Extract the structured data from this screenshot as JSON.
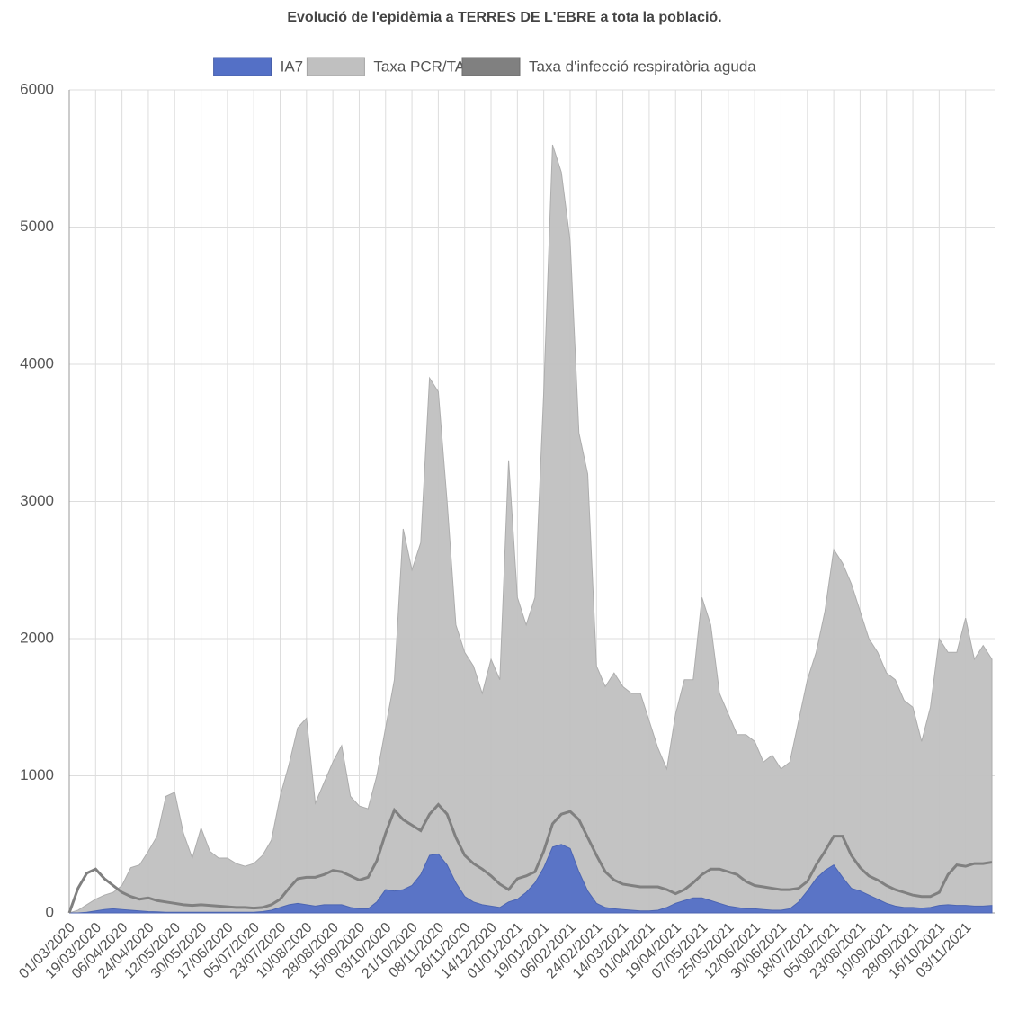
{
  "chart_data": {
    "type": "area",
    "title": "Evolució de l'epidèmia a TERRES DE L'EBRE a tota la població.",
    "categories": [
      "01/03/2020",
      null,
      null,
      "19/03/2020",
      null,
      null,
      "06/04/2020",
      null,
      null,
      "24/04/2020",
      null,
      null,
      "12/05/2020",
      null,
      null,
      "30/05/2020",
      null,
      null,
      "17/06/2020",
      null,
      null,
      "05/07/2020",
      null,
      null,
      "23/07/2020",
      null,
      null,
      "10/08/2020",
      null,
      null,
      "28/08/2020",
      null,
      null,
      "15/09/2020",
      null,
      null,
      "03/10/2020",
      null,
      null,
      "21/10/2020",
      null,
      null,
      "08/11/2020",
      null,
      null,
      "26/11/2020",
      null,
      null,
      "14/12/2020",
      null,
      null,
      "01/01/2021",
      null,
      null,
      "19/01/2021",
      null,
      null,
      "06/02/2021",
      null,
      null,
      "24/02/2021",
      null,
      null,
      "14/03/2021",
      null,
      null,
      "01/04/2021",
      null,
      null,
      "19/04/2021",
      null,
      null,
      "07/05/2021",
      null,
      null,
      "25/05/2021",
      null,
      null,
      "12/06/2021",
      null,
      null,
      "30/06/2021",
      null,
      null,
      "18/07/2021",
      null,
      null,
      "05/08/2021",
      null,
      null,
      "23/08/2021",
      null,
      null,
      "10/09/2021",
      null,
      null,
      "28/09/2021",
      null,
      null,
      "16/10/2021",
      null,
      null,
      "03/11/2021",
      null,
      null,
      null
    ],
    "series": [
      {
        "name": "IA7",
        "color": "#5470c6",
        "fill": true,
        "values": [
          0,
          0,
          5,
          15,
          25,
          30,
          25,
          20,
          15,
          10,
          8,
          5,
          5,
          5,
          5,
          5,
          5,
          5,
          5,
          5,
          5,
          5,
          10,
          20,
          40,
          60,
          70,
          60,
          50,
          60,
          60,
          60,
          40,
          30,
          30,
          80,
          170,
          160,
          170,
          200,
          280,
          420,
          430,
          350,
          220,
          120,
          80,
          60,
          50,
          40,
          80,
          100,
          150,
          220,
          330,
          480,
          500,
          470,
          300,
          160,
          70,
          40,
          30,
          25,
          20,
          15,
          15,
          20,
          40,
          70,
          90,
          110,
          110,
          90,
          70,
          50,
          40,
          30,
          30,
          25,
          20,
          20,
          30,
          80,
          160,
          250,
          310,
          350,
          260,
          180,
          160,
          130,
          100,
          70,
          50,
          40,
          40,
          35,
          40,
          55,
          60,
          55,
          55,
          50,
          50,
          55
        ]
      },
      {
        "name": "Taxa PCR/TA",
        "color": "#c0c0c0",
        "fill": true,
        "values": [
          0,
          20,
          60,
          100,
          130,
          150,
          200,
          330,
          350,
          450,
          560,
          850,
          880,
          580,
          400,
          620,
          450,
          400,
          400,
          360,
          340,
          360,
          420,
          530,
          850,
          1080,
          1350,
          1420,
          800,
          950,
          1100,
          1220,
          850,
          780,
          760,
          1000,
          1350,
          1700,
          2800,
          2500,
          2700,
          3900,
          3800,
          3000,
          2100,
          1900,
          1800,
          1600,
          1850,
          1700,
          3300,
          2300,
          2100,
          2300,
          3800,
          5600,
          5400,
          4900,
          3500,
          3200,
          1800,
          1650,
          1750,
          1650,
          1600,
          1600,
          1400,
          1200,
          1050,
          1450,
          1700,
          1700,
          2300,
          2100,
          1600,
          1450,
          1300,
          1300,
          1250,
          1100,
          1150,
          1050,
          1100,
          1400,
          1700,
          1900,
          2200,
          2650,
          2550,
          2400,
          2200,
          2000,
          1900,
          1750,
          1700,
          1550,
          1500,
          1250,
          1500,
          2000,
          1900,
          1900,
          2150,
          1850,
          1950,
          1850
        ]
      },
      {
        "name": "Taxa d'infecció respiratòria aguda",
        "color": "#808080",
        "fill": false,
        "values": [
          0,
          180,
          290,
          320,
          250,
          200,
          150,
          120,
          100,
          110,
          90,
          80,
          70,
          60,
          55,
          60,
          55,
          50,
          45,
          40,
          40,
          35,
          40,
          60,
          100,
          180,
          250,
          260,
          260,
          280,
          310,
          300,
          270,
          240,
          260,
          380,
          580,
          750,
          680,
          640,
          600,
          720,
          790,
          720,
          550,
          420,
          360,
          320,
          270,
          210,
          170,
          250,
          270,
          300,
          450,
          650,
          720,
          740,
          680,
          550,
          420,
          300,
          240,
          210,
          200,
          190,
          190,
          190,
          170,
          140,
          170,
          220,
          280,
          320,
          320,
          300,
          280,
          230,
          200,
          190,
          180,
          170,
          170,
          180,
          230,
          350,
          450,
          560,
          560,
          420,
          330,
          270,
          240,
          200,
          170,
          150,
          130,
          120,
          120,
          150,
          280,
          350,
          340,
          360,
          360,
          370
        ]
      }
    ],
    "ylim": [
      0,
      6000
    ],
    "yticks": [
      0,
      1000,
      2000,
      3000,
      4000,
      5000,
      6000
    ],
    "grid": true
  }
}
